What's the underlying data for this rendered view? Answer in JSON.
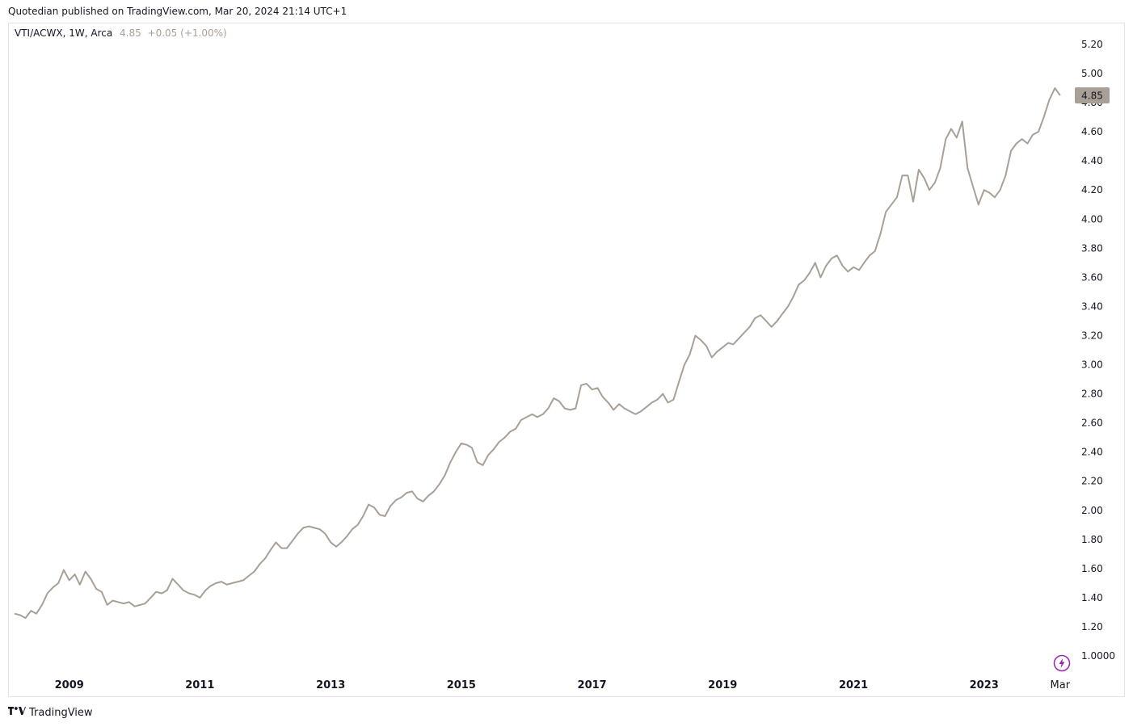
{
  "header": {
    "published": "Quotedian published on TradingView.com, Mar 20, 2024 21:14 UTC+1"
  },
  "legend": {
    "symbol": "VTI/ACWX, 1W, Arca",
    "value": "4.85",
    "change": "+0.05 (+1.00%)"
  },
  "footer": {
    "brand": "TradingView"
  },
  "colors": {
    "line": "#a8a097",
    "price_tag_bg": "#a8a097",
    "price_tag_text": "#131722"
  },
  "icons": {
    "bolt": "lightning-bolt-icon",
    "logo": "tradingview-logo-icon"
  },
  "chart_data": {
    "type": "line",
    "series": [
      {
        "points": [
          [
            "2008-03-01",
            1.29
          ],
          [
            "2008-04-01",
            1.28
          ],
          [
            "2008-05-01",
            1.26
          ],
          [
            "2008-06-01",
            1.31
          ],
          [
            "2008-07-01",
            1.29
          ],
          [
            "2008-08-01",
            1.35
          ],
          [
            "2008-09-01",
            1.43
          ],
          [
            "2008-10-01",
            1.47
          ],
          [
            "2008-11-01",
            1.5
          ],
          [
            "2008-12-01",
            1.59
          ],
          [
            "2009-01-01",
            1.52
          ],
          [
            "2009-02-01",
            1.56
          ],
          [
            "2009-03-01",
            1.49
          ],
          [
            "2009-04-01",
            1.58
          ],
          [
            "2009-05-01",
            1.53
          ],
          [
            "2009-06-01",
            1.46
          ],
          [
            "2009-07-01",
            1.44
          ],
          [
            "2009-08-01",
            1.35
          ],
          [
            "2009-09-01",
            1.38
          ],
          [
            "2009-10-01",
            1.37
          ],
          [
            "2009-11-01",
            1.36
          ],
          [
            "2009-12-01",
            1.37
          ],
          [
            "2010-01-01",
            1.34
          ],
          [
            "2010-02-01",
            1.35
          ],
          [
            "2010-03-01",
            1.36
          ],
          [
            "2010-04-01",
            1.4
          ],
          [
            "2010-05-01",
            1.44
          ],
          [
            "2010-06-01",
            1.43
          ],
          [
            "2010-07-01",
            1.45
          ],
          [
            "2010-08-01",
            1.53
          ],
          [
            "2010-09-01",
            1.49
          ],
          [
            "2010-10-01",
            1.45
          ],
          [
            "2010-11-01",
            1.43
          ],
          [
            "2010-12-01",
            1.42
          ],
          [
            "2011-01-01",
            1.4
          ],
          [
            "2011-02-01",
            1.45
          ],
          [
            "2011-03-01",
            1.48
          ],
          [
            "2011-04-01",
            1.5
          ],
          [
            "2011-05-01",
            1.51
          ],
          [
            "2011-06-01",
            1.49
          ],
          [
            "2011-07-01",
            1.5
          ],
          [
            "2011-08-01",
            1.51
          ],
          [
            "2011-09-01",
            1.52
          ],
          [
            "2011-10-01",
            1.55
          ],
          [
            "2011-11-01",
            1.58
          ],
          [
            "2011-12-01",
            1.63
          ],
          [
            "2012-01-01",
            1.67
          ],
          [
            "2012-02-01",
            1.73
          ],
          [
            "2012-03-01",
            1.78
          ],
          [
            "2012-04-01",
            1.74
          ],
          [
            "2012-05-01",
            1.74
          ],
          [
            "2012-06-01",
            1.79
          ],
          [
            "2012-07-01",
            1.84
          ],
          [
            "2012-08-01",
            1.88
          ],
          [
            "2012-09-01",
            1.89
          ],
          [
            "2012-10-01",
            1.88
          ],
          [
            "2012-11-01",
            1.87
          ],
          [
            "2012-12-01",
            1.84
          ],
          [
            "2013-01-01",
            1.78
          ],
          [
            "2013-02-01",
            1.75
          ],
          [
            "2013-03-01",
            1.78
          ],
          [
            "2013-04-01",
            1.82
          ],
          [
            "2013-05-01",
            1.87
          ],
          [
            "2013-06-01",
            1.9
          ],
          [
            "2013-07-01",
            1.96
          ],
          [
            "2013-08-01",
            2.04
          ],
          [
            "2013-09-01",
            2.02
          ],
          [
            "2013-10-01",
            1.97
          ],
          [
            "2013-11-01",
            1.96
          ],
          [
            "2013-12-01",
            2.03
          ],
          [
            "2014-01-01",
            2.07
          ],
          [
            "2014-02-01",
            2.09
          ],
          [
            "2014-03-01",
            2.12
          ],
          [
            "2014-04-01",
            2.13
          ],
          [
            "2014-05-01",
            2.08
          ],
          [
            "2014-06-01",
            2.06
          ],
          [
            "2014-07-01",
            2.1
          ],
          [
            "2014-08-01",
            2.13
          ],
          [
            "2014-09-01",
            2.18
          ],
          [
            "2014-10-01",
            2.24
          ],
          [
            "2014-11-01",
            2.33
          ],
          [
            "2014-12-01",
            2.4
          ],
          [
            "2015-01-01",
            2.46
          ],
          [
            "2015-02-01",
            2.45
          ],
          [
            "2015-03-01",
            2.43
          ],
          [
            "2015-04-01",
            2.33
          ],
          [
            "2015-05-01",
            2.31
          ],
          [
            "2015-06-01",
            2.38
          ],
          [
            "2015-07-01",
            2.42
          ],
          [
            "2015-08-01",
            2.47
          ],
          [
            "2015-09-01",
            2.5
          ],
          [
            "2015-10-01",
            2.54
          ],
          [
            "2015-11-01",
            2.56
          ],
          [
            "2015-12-01",
            2.62
          ],
          [
            "2016-01-01",
            2.64
          ],
          [
            "2016-02-01",
            2.66
          ],
          [
            "2016-03-01",
            2.64
          ],
          [
            "2016-04-01",
            2.66
          ],
          [
            "2016-05-01",
            2.7
          ],
          [
            "2016-06-01",
            2.77
          ],
          [
            "2016-07-01",
            2.75
          ],
          [
            "2016-08-01",
            2.7
          ],
          [
            "2016-09-01",
            2.69
          ],
          [
            "2016-10-01",
            2.7
          ],
          [
            "2016-11-01",
            2.86
          ],
          [
            "2016-12-01",
            2.87
          ],
          [
            "2017-01-01",
            2.83
          ],
          [
            "2017-02-01",
            2.84
          ],
          [
            "2017-03-01",
            2.78
          ],
          [
            "2017-04-01",
            2.74
          ],
          [
            "2017-05-01",
            2.69
          ],
          [
            "2017-06-01",
            2.73
          ],
          [
            "2017-07-01",
            2.7
          ],
          [
            "2017-08-01",
            2.68
          ],
          [
            "2017-09-01",
            2.66
          ],
          [
            "2017-10-01",
            2.68
          ],
          [
            "2017-11-01",
            2.71
          ],
          [
            "2017-12-01",
            2.74
          ],
          [
            "2018-01-01",
            2.76
          ],
          [
            "2018-02-01",
            2.8
          ],
          [
            "2018-03-01",
            2.74
          ],
          [
            "2018-04-01",
            2.76
          ],
          [
            "2018-05-01",
            2.88
          ],
          [
            "2018-06-01",
            3.0
          ],
          [
            "2018-07-01",
            3.07
          ],
          [
            "2018-08-01",
            3.2
          ],
          [
            "2018-09-01",
            3.17
          ],
          [
            "2018-10-01",
            3.13
          ],
          [
            "2018-11-01",
            3.05
          ],
          [
            "2018-12-01",
            3.09
          ],
          [
            "2019-01-01",
            3.12
          ],
          [
            "2019-02-01",
            3.15
          ],
          [
            "2019-03-01",
            3.14
          ],
          [
            "2019-04-01",
            3.18
          ],
          [
            "2019-05-01",
            3.22
          ],
          [
            "2019-06-01",
            3.26
          ],
          [
            "2019-07-01",
            3.32
          ],
          [
            "2019-08-01",
            3.34
          ],
          [
            "2019-09-01",
            3.3
          ],
          [
            "2019-10-01",
            3.26
          ],
          [
            "2019-11-01",
            3.3
          ],
          [
            "2019-12-01",
            3.35
          ],
          [
            "2020-01-01",
            3.4
          ],
          [
            "2020-02-01",
            3.47
          ],
          [
            "2020-03-01",
            3.55
          ],
          [
            "2020-04-01",
            3.58
          ],
          [
            "2020-05-01",
            3.63
          ],
          [
            "2020-06-01",
            3.7
          ],
          [
            "2020-07-01",
            3.6
          ],
          [
            "2020-08-01",
            3.68
          ],
          [
            "2020-09-01",
            3.73
          ],
          [
            "2020-10-01",
            3.75
          ],
          [
            "2020-11-01",
            3.68
          ],
          [
            "2020-12-01",
            3.64
          ],
          [
            "2021-01-01",
            3.67
          ],
          [
            "2021-02-01",
            3.65
          ],
          [
            "2021-03-01",
            3.7
          ],
          [
            "2021-04-01",
            3.75
          ],
          [
            "2021-05-01",
            3.78
          ],
          [
            "2021-06-01",
            3.9
          ],
          [
            "2021-07-01",
            4.05
          ],
          [
            "2021-08-01",
            4.1
          ],
          [
            "2021-09-01",
            4.15
          ],
          [
            "2021-10-01",
            4.3
          ],
          [
            "2021-11-01",
            4.3
          ],
          [
            "2021-12-01",
            4.12
          ],
          [
            "2022-01-01",
            4.34
          ],
          [
            "2022-02-01",
            4.28
          ],
          [
            "2022-03-01",
            4.2
          ],
          [
            "2022-04-01",
            4.25
          ],
          [
            "2022-05-01",
            4.35
          ],
          [
            "2022-06-01",
            4.55
          ],
          [
            "2022-07-01",
            4.62
          ],
          [
            "2022-08-01",
            4.56
          ],
          [
            "2022-09-01",
            4.67
          ],
          [
            "2022-10-01",
            4.35
          ],
          [
            "2022-11-01",
            4.22
          ],
          [
            "2022-12-01",
            4.1
          ],
          [
            "2023-01-01",
            4.2
          ],
          [
            "2023-02-01",
            4.18
          ],
          [
            "2023-03-01",
            4.15
          ],
          [
            "2023-04-01",
            4.2
          ],
          [
            "2023-05-01",
            4.3
          ],
          [
            "2023-06-01",
            4.47
          ],
          [
            "2023-07-01",
            4.52
          ],
          [
            "2023-08-01",
            4.55
          ],
          [
            "2023-09-01",
            4.52
          ],
          [
            "2023-10-01",
            4.58
          ],
          [
            "2023-11-01",
            4.6
          ],
          [
            "2023-12-01",
            4.7
          ],
          [
            "2024-01-01",
            4.82
          ],
          [
            "2024-02-01",
            4.9
          ],
          [
            "2024-03-01",
            4.85
          ]
        ]
      }
    ],
    "x_tick_labels": [
      "2009",
      "2011",
      "2013",
      "2015",
      "2017",
      "2019",
      "2021",
      "2023",
      "Mar"
    ],
    "x_ticks": [
      "2009-01-01",
      "2011-01-01",
      "2013-01-01",
      "2015-01-01",
      "2017-01-01",
      "2019-01-01",
      "2021-01-01",
      "2023-01-01",
      "2024-03-01"
    ],
    "y_tick_labels": [
      "5.20",
      "5.00",
      "4.80",
      "4.60",
      "4.40",
      "4.20",
      "4.00",
      "3.80",
      "3.60",
      "3.40",
      "3.20",
      "3.00",
      "2.80",
      "2.60",
      "2.40",
      "2.20",
      "2.00",
      "1.80",
      "1.60",
      "1.40",
      "1.20",
      "1.0000"
    ],
    "xlim": [
      "2008-03-01",
      "2024-03-20"
    ],
    "ylim": [
      1.0,
      5.2
    ],
    "last_price_label": "4.85",
    "grid": false
  }
}
